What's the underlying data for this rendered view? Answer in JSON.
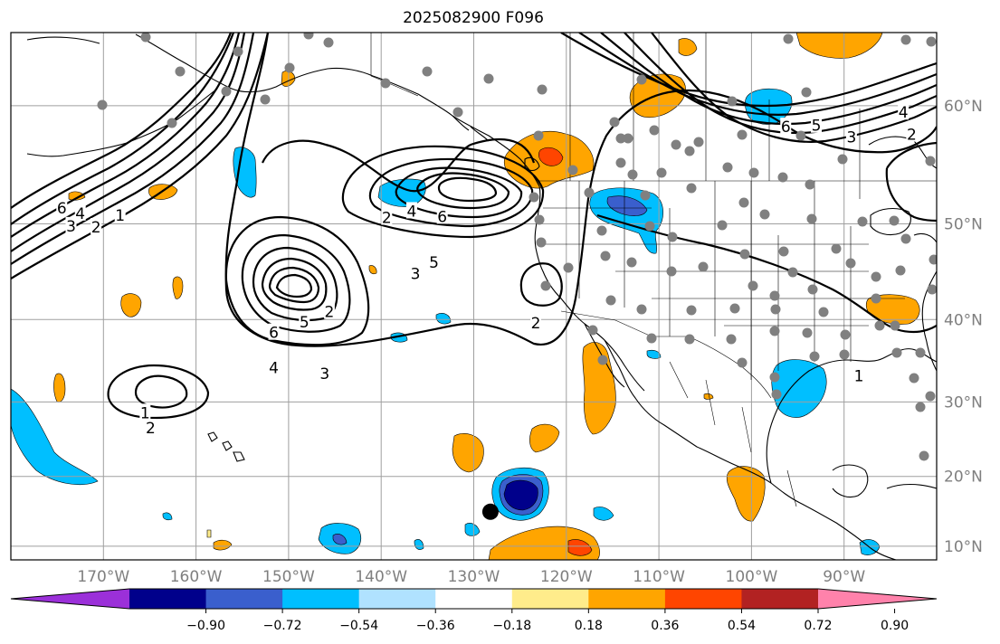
{
  "title": "2025082900 F096",
  "map": {
    "lon_range": [
      -180,
      -80
    ],
    "lat_range": [
      8,
      65
    ],
    "lon_ticks": [
      {
        "value": -170,
        "label": "170°W"
      },
      {
        "value": -160,
        "label": "160°W"
      },
      {
        "value": -150,
        "label": "150°W"
      },
      {
        "value": -140,
        "label": "140°W"
      },
      {
        "value": -130,
        "label": "130°W"
      },
      {
        "value": -120,
        "label": "120°W"
      },
      {
        "value": -110,
        "label": "110°W"
      },
      {
        "value": -100,
        "label": "100°W"
      },
      {
        "value": -90,
        "label": "90°W"
      }
    ],
    "lat_ticks": [
      {
        "value": 10,
        "label": "10°N"
      },
      {
        "value": 20,
        "label": "20°N"
      },
      {
        "value": 30,
        "label": "30°N"
      },
      {
        "value": 40,
        "label": "40°N"
      },
      {
        "value": 50,
        "label": "50°N"
      },
      {
        "value": 60,
        "label": "60°N"
      }
    ],
    "grid": true
  },
  "colorbar": {
    "levels": [
      -0.9,
      -0.72,
      -0.54,
      -0.36,
      -0.18,
      0.18,
      0.36,
      0.54,
      0.72,
      0.9
    ],
    "labels": [
      "−0.90",
      "−0.72",
      "−0.54",
      "−0.36",
      "−0.18",
      "0.18",
      "0.36",
      "0.54",
      "0.72",
      "0.90"
    ],
    "colors": [
      "#9b30d9",
      "#00008b",
      "#3a5fcd",
      "#00bfff",
      "#b0e2ff",
      "#ffffff",
      "#ffec8b",
      "#ffa500",
      "#ff4500",
      "#b22222",
      "#ff82ab"
    ],
    "extend": "both"
  },
  "contour_labels": [
    {
      "text": "6",
      "lon": -174.5,
      "lat": 51.5
    },
    {
      "text": "4",
      "lon": -172.5,
      "lat": 51.0
    },
    {
      "text": "3",
      "lon": -173.5,
      "lat": 49.8
    },
    {
      "text": "2",
      "lon": -170.8,
      "lat": 49.7
    },
    {
      "text": "1",
      "lon": -168.2,
      "lat": 50.8
    },
    {
      "text": "2",
      "lon": -139.4,
      "lat": 50.6
    },
    {
      "text": "4",
      "lon": -136.7,
      "lat": 51.2
    },
    {
      "text": "6",
      "lon": -133.4,
      "lat": 50.7
    },
    {
      "text": "5",
      "lon": -134.3,
      "lat": 46.2
    },
    {
      "text": "3",
      "lon": -136.3,
      "lat": 45.0
    },
    {
      "text": "2",
      "lon": -145.6,
      "lat": 40.9
    },
    {
      "text": "5",
      "lon": -148.3,
      "lat": 39.7
    },
    {
      "text": "6",
      "lon": -151.6,
      "lat": 38.5
    },
    {
      "text": "4",
      "lon": -151.6,
      "lat": 34.3
    },
    {
      "text": "3",
      "lon": -146.1,
      "lat": 33.6
    },
    {
      "text": "2",
      "lon": -123.3,
      "lat": 39.6
    },
    {
      "text": "1",
      "lon": -165.5,
      "lat": 28.6
    },
    {
      "text": "2",
      "lon": -164.9,
      "lat": 26.6
    },
    {
      "text": "6",
      "lon": -96.3,
      "lat": 58.4
    },
    {
      "text": "5",
      "lon": -93.0,
      "lat": 58.5
    },
    {
      "text": "3",
      "lon": -89.2,
      "lat": 57.6
    },
    {
      "text": "4",
      "lon": -83.6,
      "lat": 59.5
    },
    {
      "text": "2",
      "lon": -82.7,
      "lat": 57.8
    },
    {
      "text": "1",
      "lon": -88.4,
      "lat": 33.3
    }
  ],
  "markers": [
    {
      "type": "storm-center",
      "lon": -128.2,
      "lat": 15.0
    }
  ]
}
